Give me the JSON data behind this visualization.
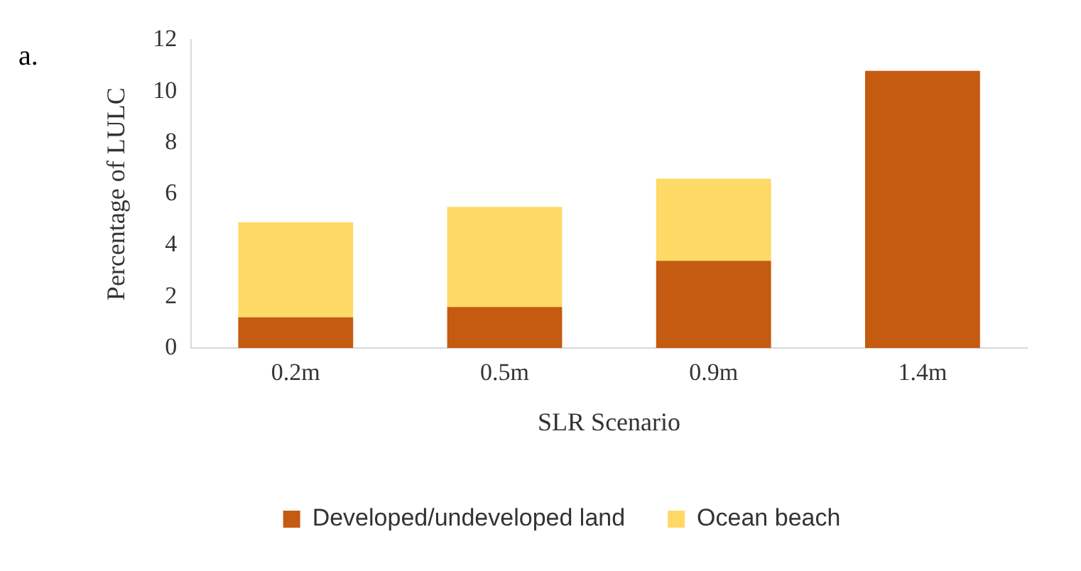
{
  "chart_data": {
    "type": "bar",
    "stacked": true,
    "xlabel": "SLR Scenario",
    "ylabel": "Percentage of LULC",
    "categories": [
      "0.2m",
      "0.5m",
      "0.9m",
      "1.4m"
    ],
    "series": [
      {
        "name": "Developed/undeveloped land",
        "color": "#c55a11",
        "values": [
          1.2,
          1.6,
          3.4,
          10.8
        ]
      },
      {
        "name": "Ocean beach",
        "color": "#ffd966",
        "values": [
          3.7,
          3.9,
          3.2,
          0
        ]
      }
    ],
    "ylim": [
      0,
      12
    ],
    "yticks": [
      0,
      2,
      4,
      6,
      8,
      10,
      12
    ],
    "grid": false,
    "legend": "bottom",
    "annotations": [
      "a."
    ]
  }
}
